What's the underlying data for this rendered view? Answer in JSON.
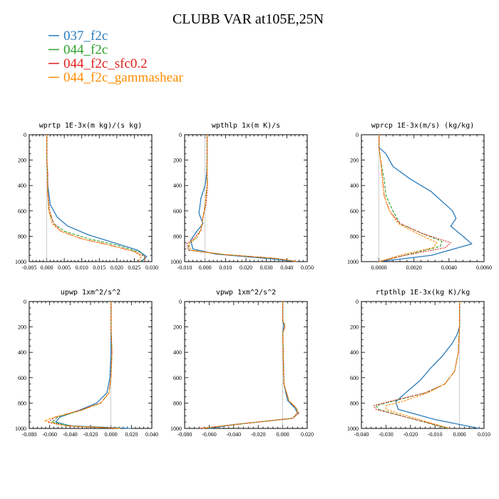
{
  "figure": {
    "title": "CLUBB VAR at105E,25N"
  },
  "legend": [
    {
      "label": "037_f2c",
      "color": "#2b7bba"
    },
    {
      "label": "044_f2c",
      "color": "#2ca02c"
    },
    {
      "label": "044_f2c_sfc0.2",
      "color": "#e0201c"
    },
    {
      "label": "044_f2c_gammashear",
      "color": "#ff8c00"
    }
  ],
  "chart_data": [
    {
      "type": "line",
      "title": "wprtp  1E-3x(m kg)/(s kg)",
      "xlim": [
        -0.005,
        0.03
      ],
      "ylim": [
        1000,
        0
      ],
      "xticks": [
        -0.005,
        0.0,
        0.005,
        0.01,
        0.015,
        0.02,
        0.025,
        0.03
      ],
      "xtick_labels": [
        "-0.005",
        "0.000",
        "0.005",
        "0.010",
        "0.015",
        "0.020",
        "0.025",
        "0.030"
      ],
      "yticks": [
        0,
        200,
        400,
        600,
        800,
        1000
      ],
      "ytick_labels": [
        "0",
        "200",
        "400",
        "600",
        "800",
        "1000"
      ],
      "series": [
        {
          "name": "037_f2c",
          "x": [
            0.0,
            0.0,
            0.0002,
            0.0003,
            0.001,
            0.003,
            0.006,
            0.012,
            0.019,
            0.026,
            0.0285,
            0.027
          ],
          "y": [
            0,
            200,
            300,
            400,
            550,
            650,
            720,
            790,
            850,
            910,
            960,
            1000
          ]
        },
        {
          "name": "044_f2c",
          "x": [
            0.0,
            0.0,
            0.0002,
            0.0003,
            0.0006,
            0.002,
            0.005,
            0.012,
            0.02,
            0.027,
            0.028,
            0.027
          ],
          "y": [
            0,
            200,
            300,
            450,
            600,
            700,
            760,
            820,
            870,
            930,
            970,
            1000
          ]
        },
        {
          "name": "044_f2c_sfc0.2",
          "x": [
            0.0,
            0.0,
            0.0003,
            0.0003,
            0.0008,
            0.002,
            0.004,
            0.01,
            0.018,
            0.025,
            0.028,
            0.028
          ],
          "y": [
            0,
            200,
            300,
            450,
            600,
            700,
            760,
            820,
            870,
            920,
            960,
            1000
          ]
        },
        {
          "name": "044_f2c_gammashear",
          "x": [
            0.0,
            0.0,
            0.0002,
            0.0002,
            0.0006,
            0.0015,
            0.004,
            0.01,
            0.018,
            0.025,
            0.027,
            0.026
          ],
          "y": [
            0,
            200,
            300,
            450,
            600,
            700,
            760,
            820,
            870,
            920,
            960,
            1000
          ]
        }
      ]
    },
    {
      "type": "line",
      "title": "wpthlp  1x(m K)/s",
      "xlim": [
        -0.01,
        0.05
      ],
      "ylim": [
        1000,
        0
      ],
      "xticks": [
        -0.01,
        0.0,
        0.01,
        0.02,
        0.03,
        0.04,
        0.05
      ],
      "xtick_labels": [
        "-0.010",
        "0.000",
        "0.010",
        "0.020",
        "0.030",
        "0.040",
        "0.050"
      ],
      "yticks": [
        0,
        200,
        400,
        600,
        800,
        1000
      ],
      "ytick_labels": [
        "0",
        "200",
        "400",
        "600",
        "800",
        "1000"
      ],
      "series": [
        {
          "name": "037_f2c",
          "x": [
            0.001,
            0.001,
            0.0008,
            0.0,
            -0.002,
            -0.003,
            -0.001,
            -0.004,
            -0.007,
            -0.006,
            0.005,
            0.03,
            0.045
          ],
          "y": [
            0,
            200,
            300,
            400,
            500,
            620,
            700,
            760,
            830,
            900,
            940,
            975,
            1000
          ]
        },
        {
          "name": "044_f2c",
          "x": [
            0.001,
            0.001,
            0.001,
            0.001,
            0.0,
            -0.001,
            -0.002,
            -0.004,
            -0.008,
            -0.008,
            0.01,
            0.035,
            0.045
          ],
          "y": [
            0,
            200,
            300,
            400,
            550,
            650,
            750,
            810,
            860,
            910,
            945,
            975,
            1000
          ]
        },
        {
          "name": "044_f2c_sfc0.2",
          "x": [
            0.001,
            0.001,
            0.001,
            0.0012,
            0.0005,
            -0.001,
            -0.002,
            -0.005,
            -0.009,
            -0.008,
            0.01,
            0.035,
            0.045
          ],
          "y": [
            0,
            200,
            300,
            400,
            550,
            650,
            750,
            810,
            860,
            910,
            945,
            975,
            1000
          ]
        },
        {
          "name": "044_f2c_gammashear",
          "x": [
            0.001,
            0.001,
            0.001,
            0.001,
            0.0,
            -0.001,
            -0.002,
            -0.004,
            -0.008,
            -0.007,
            0.01,
            0.035,
            0.045
          ],
          "y": [
            0,
            200,
            300,
            400,
            550,
            650,
            750,
            810,
            860,
            910,
            945,
            975,
            1000
          ]
        }
      ]
    },
    {
      "type": "line",
      "title": "wprcp  1E-3x(m/s) (kg/kg)",
      "xlim": [
        -0.001,
        0.006
      ],
      "ylim": [
        1000,
        0
      ],
      "xticks": [
        0.0,
        0.002,
        0.004,
        0.006
      ],
      "xtick_labels": [
        "0.0000",
        "0.0020",
        "0.0040",
        "0.0060"
      ],
      "yticks": [
        0,
        200,
        400,
        600,
        800,
        1000
      ],
      "ytick_labels": [
        "0",
        "200",
        "400",
        "600",
        "800",
        "1000"
      ],
      "series": [
        {
          "name": "037_f2c",
          "x": [
            0.0,
            0.0,
            0.0004,
            0.0008,
            0.0018,
            0.003,
            0.0042,
            0.0044,
            0.0041,
            0.0048,
            0.0053,
            0.003,
            0.0
          ],
          "y": [
            0,
            100,
            150,
            250,
            350,
            450,
            600,
            660,
            720,
            800,
            860,
            950,
            1000
          ]
        },
        {
          "name": "044_f2c",
          "x": [
            0.0,
            0.0,
            0.0001,
            0.0003,
            0.0004,
            0.0008,
            0.0012,
            0.0025,
            0.0036,
            0.0035,
            0.0015,
            0.0
          ],
          "y": [
            0,
            100,
            200,
            350,
            480,
            600,
            700,
            780,
            840,
            880,
            950,
            1000
          ]
        },
        {
          "name": "044_f2c_sfc0.2",
          "x": [
            0.0,
            0.0,
            0.0001,
            0.0002,
            0.0003,
            0.0006,
            0.0012,
            0.0025,
            0.0041,
            0.0038,
            0.0015,
            0.0
          ],
          "y": [
            0,
            100,
            200,
            350,
            480,
            600,
            700,
            780,
            850,
            890,
            950,
            1000
          ]
        },
        {
          "name": "044_f2c_gammashear",
          "x": [
            0.0,
            0.0,
            0.0001,
            0.0002,
            0.0003,
            0.0006,
            0.0011,
            0.0022,
            0.0033,
            0.0031,
            0.0012,
            0.0
          ],
          "y": [
            0,
            100,
            200,
            350,
            480,
            600,
            700,
            780,
            850,
            890,
            950,
            1000
          ]
        }
      ]
    },
    {
      "type": "line",
      "title": "upwp  1xm^2/s^2",
      "xlim": [
        -0.08,
        0.04
      ],
      "ylim": [
        1000,
        0
      ],
      "xticks": [
        -0.08,
        -0.06,
        -0.04,
        -0.02,
        0.0,
        0.02,
        0.04
      ],
      "xtick_labels": [
        "-0.080",
        "-0.060",
        "-0.040",
        "-0.020",
        "0.000",
        "0.020",
        "0.040"
      ],
      "yticks": [
        0,
        200,
        400,
        600,
        800,
        1000
      ],
      "ytick_labels": [
        "0",
        "200",
        "400",
        "600",
        "800",
        "1000"
      ],
      "series": [
        {
          "name": "037_f2c",
          "x": [
            0.0,
            0.0,
            0.0,
            -0.001,
            -0.004,
            -0.014,
            -0.032,
            -0.05,
            -0.054,
            -0.04,
            0.02
          ],
          "y": [
            0,
            200,
            400,
            600,
            720,
            800,
            860,
            910,
            950,
            980,
            1000
          ]
        },
        {
          "name": "044_f2c",
          "x": [
            0.0,
            0.0,
            0.001,
            0.0,
            -0.002,
            -0.01,
            -0.03,
            -0.052,
            -0.058,
            -0.04,
            0.01
          ],
          "y": [
            0,
            200,
            400,
            600,
            720,
            800,
            860,
            910,
            950,
            980,
            1000
          ]
        },
        {
          "name": "044_f2c_sfc0.2",
          "x": [
            0.0,
            0.0,
            0.001,
            0.0,
            -0.002,
            -0.01,
            -0.032,
            -0.054,
            -0.062,
            -0.045,
            0.01
          ],
          "y": [
            0,
            200,
            400,
            600,
            720,
            800,
            860,
            910,
            950,
            980,
            1000
          ]
        },
        {
          "name": "044_f2c_gammashear",
          "x": [
            0.0,
            0.0,
            0.001,
            0.0,
            -0.002,
            -0.01,
            -0.03,
            -0.055,
            -0.065,
            -0.045,
            0.01
          ],
          "y": [
            0,
            200,
            400,
            600,
            720,
            800,
            860,
            910,
            940,
            980,
            1000
          ]
        }
      ]
    },
    {
      "type": "line",
      "title": "vpwp  1xm^2/s^2",
      "xlim": [
        -0.08,
        0.02
      ],
      "ylim": [
        1000,
        0
      ],
      "xticks": [
        -0.08,
        -0.06,
        -0.04,
        -0.02,
        0.0,
        0.02
      ],
      "xtick_labels": [
        "-0.080",
        "-0.060",
        "-0.040",
        "-0.020",
        "0.000",
        "0.020"
      ],
      "yticks": [
        0,
        200,
        400,
        600,
        800,
        1000
      ],
      "ytick_labels": [
        "0",
        "200",
        "400",
        "600",
        "800",
        "1000"
      ],
      "series": [
        {
          "name": "037_f2c",
          "x": [
            0.0,
            0.0,
            0.001,
            0.0,
            0.001,
            0.004,
            0.01,
            0.012,
            0.008,
            -0.04,
            -0.06
          ],
          "y": [
            0,
            150,
            190,
            250,
            650,
            780,
            840,
            880,
            920,
            970,
            1000
          ]
        },
        {
          "name": "044_f2c",
          "x": [
            0.0,
            0.0,
            0.002,
            0.0,
            0.001,
            0.005,
            0.011,
            0.013,
            0.008,
            -0.04,
            -0.065
          ],
          "y": [
            0,
            150,
            190,
            250,
            650,
            780,
            840,
            880,
            920,
            970,
            1000
          ]
        },
        {
          "name": "044_f2c_sfc0.2",
          "x": [
            0.0,
            0.0,
            0.002,
            0.0,
            0.001,
            0.005,
            0.011,
            0.013,
            0.008,
            -0.04,
            -0.068
          ],
          "y": [
            0,
            150,
            190,
            250,
            650,
            780,
            840,
            880,
            920,
            970,
            1000
          ]
        },
        {
          "name": "044_f2c_gammashear",
          "x": [
            0.0,
            0.0,
            0.002,
            0.0,
            0.001,
            0.005,
            0.011,
            0.012,
            0.008,
            -0.04,
            -0.066
          ],
          "y": [
            0,
            150,
            190,
            250,
            650,
            780,
            840,
            880,
            920,
            970,
            1000
          ]
        }
      ]
    },
    {
      "type": "line",
      "title": "rtpthlp  1E-3x(kg K)/kg",
      "xlim": [
        -0.04,
        0.01
      ],
      "ylim": [
        1000,
        0
      ],
      "xticks": [
        -0.04,
        -0.03,
        -0.02,
        -0.01,
        0.0,
        0.01
      ],
      "xtick_labels": [
        "-0.040",
        "-0.030",
        "-0.020",
        "-0.010",
        "0.000",
        "0.010"
      ],
      "yticks": [
        0,
        200,
        400,
        600,
        800,
        1000
      ],
      "ytick_labels": [
        "0",
        "200",
        "400",
        "600",
        "800",
        "1000"
      ],
      "series": [
        {
          "name": "037_f2c",
          "x": [
            0.0,
            0.0,
            -0.001,
            -0.003,
            -0.007,
            -0.012,
            -0.016,
            -0.022,
            -0.026,
            -0.025,
            -0.01,
            0.008
          ],
          "y": [
            0,
            200,
            260,
            330,
            430,
            530,
            620,
            720,
            790,
            850,
            930,
            1000
          ]
        },
        {
          "name": "044_f2c",
          "x": [
            0.0,
            0.0,
            -0.0005,
            -0.002,
            -0.006,
            -0.014,
            -0.026,
            -0.034,
            -0.033,
            -0.02,
            -0.005
          ],
          "y": [
            0,
            200,
            400,
            550,
            650,
            720,
            780,
            820,
            850,
            920,
            1000
          ]
        },
        {
          "name": "044_f2c_sfc0.2",
          "x": [
            0.0,
            0.0,
            -0.0005,
            -0.002,
            -0.006,
            -0.014,
            -0.027,
            -0.035,
            -0.034,
            -0.02,
            -0.004
          ],
          "y": [
            0,
            200,
            400,
            550,
            650,
            720,
            780,
            820,
            850,
            920,
            1000
          ]
        },
        {
          "name": "044_f2c_gammashear",
          "x": [
            0.0,
            0.0,
            -0.0005,
            -0.002,
            -0.006,
            -0.013,
            -0.022,
            -0.03,
            -0.03,
            -0.018,
            -0.004
          ],
          "y": [
            0,
            200,
            400,
            550,
            650,
            720,
            780,
            820,
            850,
            920,
            1000
          ]
        }
      ]
    }
  ]
}
